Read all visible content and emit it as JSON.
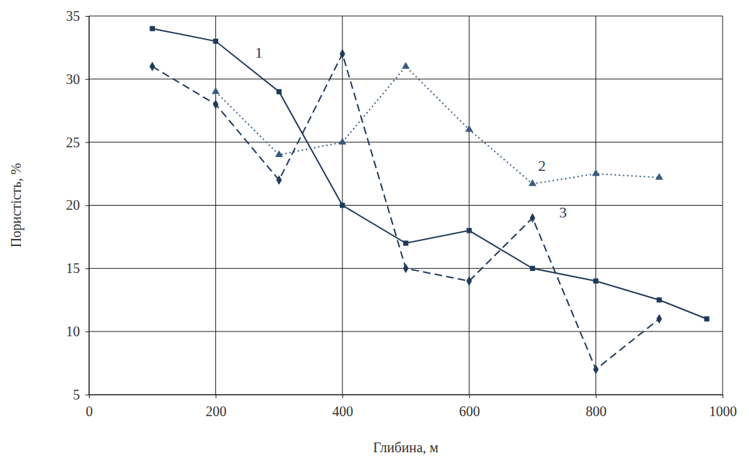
{
  "chart_data": {
    "type": "line",
    "x_label": "Глибина, м",
    "y_label": "Пористість, %",
    "xlim": [
      0,
      1000
    ],
    "xticks": [
      0,
      200,
      400,
      600,
      800,
      1000
    ],
    "ylim": [
      5,
      35
    ],
    "yticks": [
      5,
      10,
      15,
      20,
      25,
      30,
      35
    ],
    "grid": true,
    "series": [
      {
        "color": "#1f3a5a",
        "line_style": "solid",
        "marker": "square",
        "x": [
          100,
          200,
          300,
          400,
          500,
          600,
          700,
          800,
          900,
          975
        ],
        "values": [
          34,
          33,
          29,
          20,
          17,
          18,
          15,
          14,
          12.5,
          11
        ]
      },
      {
        "color": "#3a5a7c",
        "line_style": "dotted",
        "marker": "triangle",
        "x": [
          200,
          300,
          400,
          500,
          600,
          700,
          800,
          900
        ],
        "values": [
          29,
          24,
          25,
          31,
          26,
          21.7,
          22.5,
          22.2
        ]
      },
      {
        "color": "#1f3a5a",
        "line_style": "dashed",
        "marker": "diamond",
        "x": [
          100,
          200,
          300,
          400,
          500,
          600,
          700,
          800,
          900
        ],
        "values": [
          31,
          28,
          22,
          32,
          15,
          14,
          19,
          7,
          11
        ]
      }
    ],
    "annotations": [
      {
        "text": "1",
        "x": 268,
        "y": 32
      },
      {
        "text": "2",
        "x": 715,
        "y": 23
      },
      {
        "text": "3",
        "x": 748,
        "y": 19.3
      }
    ]
  }
}
